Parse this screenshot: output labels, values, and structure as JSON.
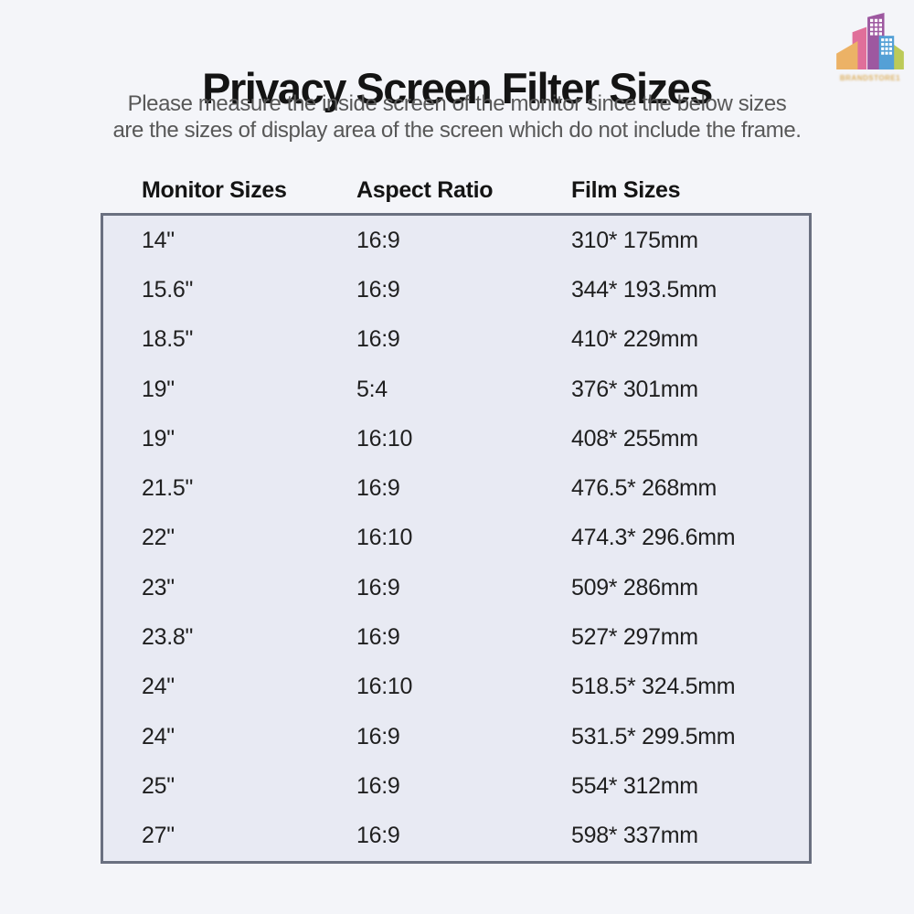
{
  "page": {
    "title": "Privacy Screen Filter Sizes",
    "subtitle_line1": "Please measure the inside screen of the monitor since the below sizes",
    "subtitle_line2": "are the sizes of display area of the screen which do not include the frame."
  },
  "logo": {
    "brand_text": "BRANDSTORE1",
    "building_colors": {
      "orange": "#ecb266",
      "pink": "#e06f9a",
      "purple": "#9d58a0",
      "blue": "#54a0d6",
      "green": "#bcca58",
      "window": "#ffffff"
    }
  },
  "table": {
    "headers": [
      "Monitor Sizes",
      "Aspect Ratio",
      "Film Sizes"
    ],
    "rows": [
      [
        "14\"",
        "16:9",
        "310* 175mm"
      ],
      [
        "15.6\"",
        "16:9",
        "344* 193.5mm"
      ],
      [
        "18.5\"",
        "16:9",
        "410* 229mm"
      ],
      [
        "19\"",
        "5:4",
        "376* 301mm"
      ],
      [
        "19\"",
        "16:10",
        "408* 255mm"
      ],
      [
        "21.5\"",
        "16:9",
        "476.5* 268mm"
      ],
      [
        "22\"",
        "16:10",
        "474.3* 296.6mm"
      ],
      [
        "23\"",
        "16:9",
        "509* 286mm"
      ],
      [
        "23.8\"",
        "16:9",
        "527* 297mm"
      ],
      [
        "24\"",
        "16:10",
        "518.5* 324.5mm"
      ],
      [
        "24\"",
        "16:9",
        "531.5* 299.5mm"
      ],
      [
        "25\"",
        "16:9",
        "554* 312mm"
      ],
      [
        "27\"",
        "16:9",
        "598* 337mm"
      ]
    ]
  },
  "colors": {
    "page_background": "#f4f5f9",
    "table_background": "#e8eaf3",
    "table_border": "#6a7080",
    "title_color": "#141414",
    "subtitle_color": "#585858",
    "body_text": "#1f1f1f",
    "brand_text_color": "#ddb05e"
  }
}
